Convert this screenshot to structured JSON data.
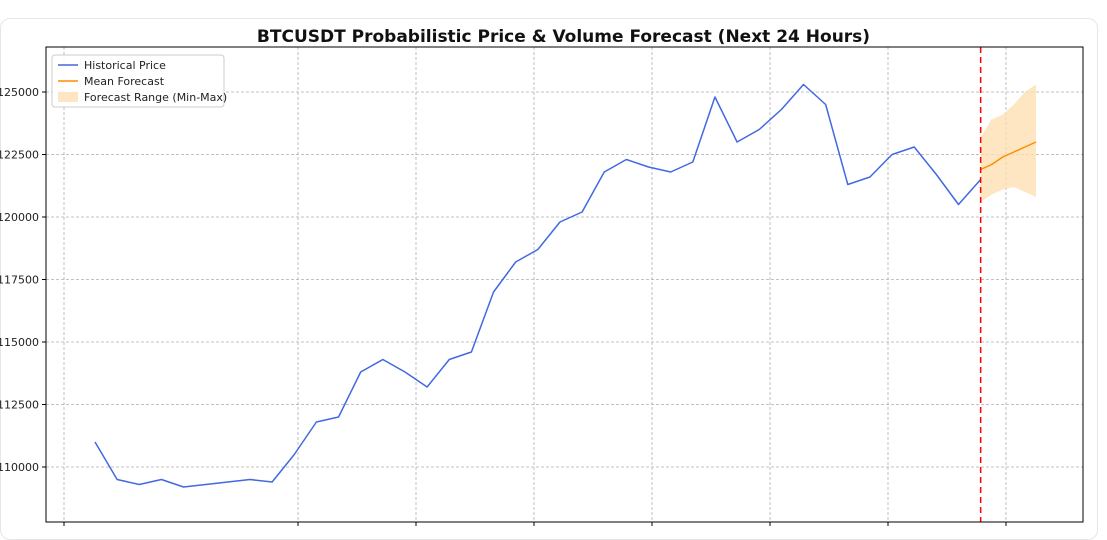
{
  "chart_data": {
    "type": "line",
    "title": "BTCUSDT Probabilistic Price & Volume Forecast (Next 24 Hours)",
    "xlabel": "",
    "ylabel": "",
    "ylim": [
      107800,
      126800
    ],
    "yticks": [
      110000,
      112500,
      115000,
      117500,
      120000,
      122500,
      125000
    ],
    "grid": true,
    "legend_position": "top-left",
    "forecast_start_index": 400,
    "series": [
      {
        "name": "Historical Price",
        "color": "#4169e1",
        "x": [
          0,
          10,
          20,
          30,
          40,
          50,
          60,
          70,
          80,
          90,
          100,
          110,
          120,
          130,
          140,
          150,
          160,
          170,
          180,
          190,
          200,
          210,
          220,
          230,
          240,
          250,
          260,
          270,
          280,
          290,
          300,
          310,
          320,
          330,
          340,
          350,
          360,
          370,
          380,
          390,
          400
        ],
        "values": [
          111000,
          109500,
          109300,
          109500,
          109200,
          109300,
          109400,
          109500,
          109400,
          110500,
          111800,
          112000,
          113800,
          114300,
          113800,
          113200,
          114300,
          114600,
          117000,
          118200,
          118700,
          119800,
          120200,
          121800,
          122300,
          122000,
          121800,
          122200,
          124800,
          123000,
          123500,
          124300,
          125300,
          124500,
          121300,
          121600,
          122500,
          122800,
          121700,
          120500,
          121500
        ]
      },
      {
        "name": "Mean Forecast",
        "color": "#ff8c00",
        "x": [
          400,
          405,
          410,
          415,
          420,
          425
        ],
        "values": [
          121900,
          122100,
          122400,
          122600,
          122800,
          123000
        ]
      }
    ],
    "band": {
      "name": "Forecast Range (Min-Max)",
      "color": "#ffdead",
      "x": [
        400,
        405,
        410,
        415,
        420,
        425
      ],
      "upper": [
        123200,
        123900,
        124100,
        124500,
        125000,
        125300
      ],
      "lower": [
        120600,
        120900,
        121100,
        121200,
        121000,
        120800
      ]
    },
    "forecast_line_color": "#ff0000"
  }
}
